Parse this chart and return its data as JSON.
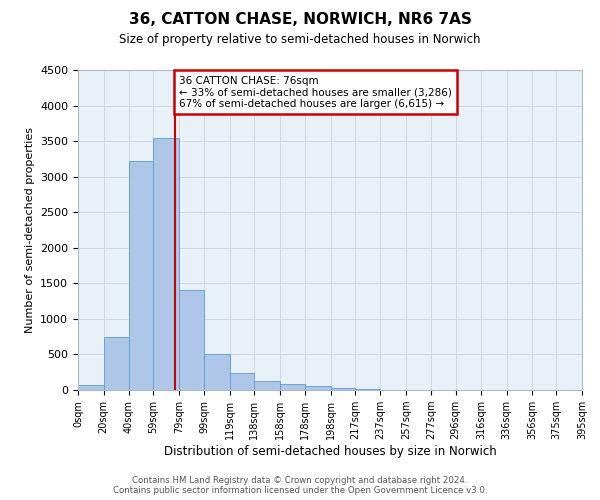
{
  "title": "36, CATTON CHASE, NORWICH, NR6 7AS",
  "subtitle": "Size of property relative to semi-detached houses in Norwich",
  "xlabel": "Distribution of semi-detached houses by size in Norwich",
  "ylabel": "Number of semi-detached properties",
  "bar_values": [
    75,
    750,
    3225,
    3550,
    1400,
    510,
    240,
    120,
    80,
    55,
    30,
    10,
    5,
    3,
    2,
    1,
    1,
    1,
    1,
    1
  ],
  "bin_edges": [
    0,
    20,
    40,
    59,
    79,
    99,
    119,
    138,
    158,
    178,
    198,
    217,
    237,
    257,
    277,
    296,
    316,
    336,
    356,
    375,
    395
  ],
  "tick_labels": [
    "0sqm",
    "20sqm",
    "40sqm",
    "59sqm",
    "79sqm",
    "99sqm",
    "119sqm",
    "138sqm",
    "158sqm",
    "178sqm",
    "198sqm",
    "217sqm",
    "237sqm",
    "257sqm",
    "277sqm",
    "296sqm",
    "316sqm",
    "336sqm",
    "356sqm",
    "375sqm",
    "395sqm"
  ],
  "bar_color": "#aec6e8",
  "bar_edge_color": "#5b9bd5",
  "vline_x": 76,
  "vline_color": "#cc0000",
  "annotation_box_color": "#cc0000",
  "annotation_text": "36 CATTON CHASE: 76sqm\n← 33% of semi-detached houses are smaller (3,286)\n67% of semi-detached houses are larger (6,615) →",
  "ylim": [
    0,
    4500
  ],
  "yticks": [
    0,
    500,
    1000,
    1500,
    2000,
    2500,
    3000,
    3500,
    4000,
    4500
  ],
  "grid_color": "#cdd9e5",
  "bg_color": "#e8f0f8",
  "footer_line1": "Contains HM Land Registry data © Crown copyright and database right 2024.",
  "footer_line2": "Contains public sector information licensed under the Open Government Licence v3.0."
}
